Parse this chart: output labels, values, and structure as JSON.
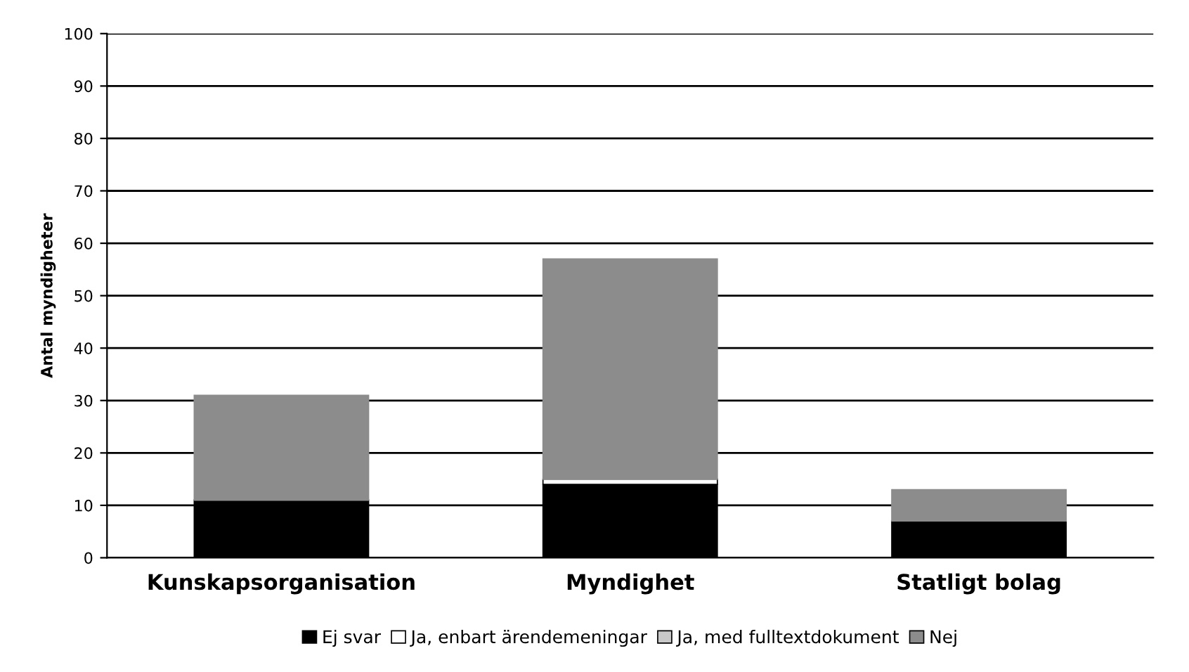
{
  "chart_data": {
    "type": "bar",
    "stacked": true,
    "ylabel": "Antal myndigheter",
    "categories": [
      "Kunskapsorganisation",
      "Myndighet",
      "Statligt bolag"
    ],
    "series": [
      {
        "name": "Ej svar",
        "color": "#000000",
        "values": [
          11,
          14,
          7
        ]
      },
      {
        "name": "Ja, enbart ärendemeningar",
        "color": "#ffffff",
        "values": [
          0,
          1,
          0
        ]
      },
      {
        "name": "Ja, med fulltextdokument",
        "color": "#c8c8c8",
        "values": [
          0,
          0,
          0
        ]
      },
      {
        "name": "Nej",
        "color": "#8c8c8c",
        "values": [
          20,
          42,
          6
        ]
      }
    ],
    "ylim": [
      0,
      100
    ],
    "yticks": [
      0,
      10,
      20,
      30,
      40,
      50,
      60,
      70,
      80,
      90,
      100
    ],
    "grid": "y",
    "legend": "bottom"
  }
}
